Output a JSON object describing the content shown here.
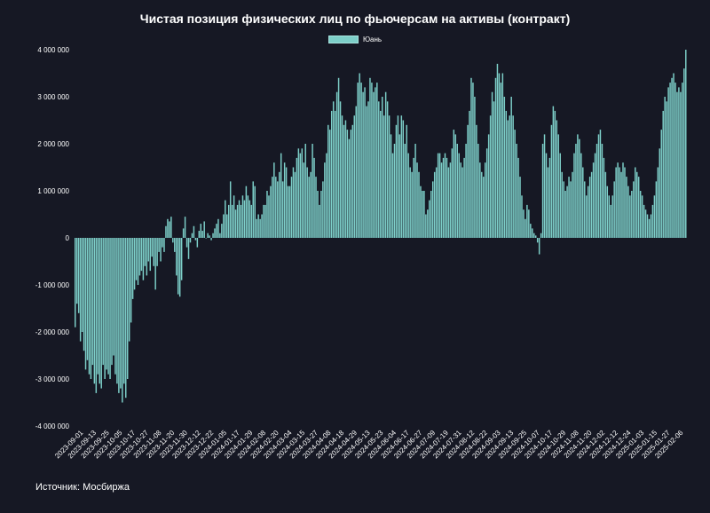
{
  "chart_data": {
    "type": "bar",
    "title": "Чистая позиция физических лиц по фьючерсам на активы  (контракт)",
    "series": [
      {
        "name": "Юань",
        "color": "#7dcfc9"
      }
    ],
    "ylim": [
      -4000000,
      4000000
    ],
    "yticks": [
      {
        "value": 4000000,
        "label": "4 000 000"
      },
      {
        "value": 3000000,
        "label": "3 000 000"
      },
      {
        "value": 2000000,
        "label": "2 000 000"
      },
      {
        "value": 1000000,
        "label": "1 000 000"
      },
      {
        "value": 0,
        "label": "0"
      },
      {
        "value": -1000000,
        "label": "-1 000 000"
      },
      {
        "value": -2000000,
        "label": "-2 000 000"
      },
      {
        "value": -3000000,
        "label": "-3 000 000"
      },
      {
        "value": -4000000,
        "label": "-4 000 000"
      }
    ],
    "xticks": [
      "2023-09-01",
      "2023-09-13",
      "2023-09-25",
      "2023-10-05",
      "2023-10-17",
      "2023-10-27",
      "2023-11-08",
      "2023-11-20",
      "2023-11-30",
      "2023-12-12",
      "2023-12-22",
      "2024-01-05",
      "2024-01-17",
      "2024-01-29",
      "2024-02-08",
      "2024-02-20",
      "2024-03-04",
      "2024-03-15",
      "2024-03-27",
      "2024-04-08",
      "2024-04-18",
      "2024-04-29",
      "2024-05-13",
      "2024-05-23",
      "2024-06-04",
      "2024-06-17",
      "2024-06-27",
      "2024-07-09",
      "2024-07-19",
      "2024-07-31",
      "2024-08-12",
      "2024-08-22",
      "2024-09-03",
      "2024-09-13",
      "2024-09-25",
      "2024-10-07",
      "2024-10-17",
      "2024-10-29",
      "2024-11-08",
      "2024-11-20",
      "2024-12-02",
      "2024-12-12",
      "2024-12-24",
      "2025-01-03",
      "2025-01-15",
      "2025-01-27",
      "2025-02-06"
    ],
    "values": [
      -1900000,
      -1400000,
      -1600000,
      -2200000,
      -2000000,
      -2400000,
      -2800000,
      -2600000,
      -2900000,
      -3000000,
      -2700000,
      -3100000,
      -3300000,
      -2900000,
      -3100000,
      -3200000,
      -2700000,
      -3000000,
      -2800000,
      -2900000,
      -3000000,
      -2700000,
      -2500000,
      -2900000,
      -3100000,
      -3300000,
      -3200000,
      -3500000,
      -3100000,
      -3400000,
      -3000000,
      -2200000,
      -1800000,
      -1300000,
      -1100000,
      -900000,
      -1000000,
      -800000,
      -700000,
      -900000,
      -600000,
      -800000,
      -500000,
      -700000,
      -400000,
      -600000,
      -1100000,
      -600000,
      -300000,
      -500000,
      -200000,
      -300000,
      250000,
      400000,
      350000,
      450000,
      -100000,
      -300000,
      -800000,
      -1200000,
      -1250000,
      -900000,
      200000,
      450000,
      -200000,
      -450000,
      -100000,
      100000,
      250000,
      -50000,
      -200000,
      150000,
      300000,
      150000,
      350000,
      0,
      100000,
      50000,
      -50000,
      100000,
      200000,
      300000,
      400000,
      100000,
      300000,
      500000,
      800000,
      500000,
      700000,
      1200000,
      700000,
      900000,
      600000,
      700000,
      800000,
      700000,
      900000,
      800000,
      1100000,
      900000,
      800000,
      700000,
      1200000,
      1100000,
      400000,
      500000,
      400000,
      500000,
      700000,
      700000,
      1000000,
      900000,
      1100000,
      1300000,
      1600000,
      1300000,
      1200000,
      1400000,
      1800000,
      1200000,
      1600000,
      1500000,
      1100000,
      1100000,
      1300000,
      1500000,
      1400000,
      1700000,
      1900000,
      1800000,
      1900000,
      1600000,
      2000000,
      1500000,
      1300000,
      1400000,
      2000000,
      1700000,
      1300000,
      1000000,
      700000,
      1000000,
      1200000,
      1600000,
      1800000,
      2400000,
      2300000,
      2700000,
      2900000,
      2700000,
      3100000,
      3400000,
      2900000,
      2600000,
      2400000,
      2500000,
      2300000,
      2100000,
      2300000,
      2400000,
      2600000,
      2800000,
      3300000,
      3500000,
      3300000,
      3100000,
      3200000,
      2800000,
      2900000,
      3400000,
      3300000,
      3100000,
      3200000,
      3300000,
      2900000,
      2700000,
      3000000,
      2600000,
      3100000,
      2900000,
      2600000,
      2200000,
      1800000,
      2000000,
      2400000,
      2600000,
      2200000,
      2600000,
      2500000,
      2000000,
      2400000,
      1800000,
      1500000,
      1400000,
      1700000,
      2000000,
      1600000,
      1400000,
      1100000,
      1000000,
      1000000,
      500000,
      600000,
      800000,
      1000000,
      1200000,
      1400000,
      1500000,
      1800000,
      1800000,
      1600000,
      1700000,
      1800000,
      1700000,
      1500000,
      1600000,
      1900000,
      2300000,
      2200000,
      2000000,
      1800000,
      1600000,
      1500000,
      1700000,
      2000000,
      2400000,
      2700000,
      3400000,
      3300000,
      3000000,
      2400000,
      2000000,
      1600000,
      1400000,
      1300000,
      1600000,
      1900000,
      2200000,
      2600000,
      3100000,
      2900000,
      3400000,
      3700000,
      3500000,
      3300000,
      3500000,
      3000000,
      2700000,
      2500000,
      2600000,
      3000000,
      2600000,
      2300000,
      2000000,
      1700000,
      1300000,
      900000,
      600000,
      400000,
      700000,
      600000,
      300000,
      200000,
      100000,
      50000,
      -100000,
      -350000,
      100000,
      2000000,
      2200000,
      1800000,
      1500000,
      1700000,
      2400000,
      2800000,
      2700000,
      2500000,
      2200000,
      1800000,
      1400000,
      1200000,
      1000000,
      1100000,
      1300000,
      1200000,
      1400000,
      1800000,
      2000000,
      2200000,
      2100000,
      1800000,
      1500000,
      1200000,
      900000,
      1100000,
      1300000,
      1400000,
      1600000,
      1800000,
      2000000,
      2200000,
      2300000,
      2000000,
      1700000,
      1400000,
      1100000,
      900000,
      700000,
      900000,
      1200000,
      1500000,
      1600000,
      1500000,
      1400000,
      1600000,
      1500000,
      1300000,
      1100000,
      900000,
      1000000,
      1200000,
      1500000,
      1400000,
      1300000,
      1000000,
      900000,
      700000,
      600000,
      500000,
      400000,
      500000,
      700000,
      900000,
      1200000,
      1500000,
      1900000,
      2300000,
      2700000,
      3000000,
      2900000,
      3200000,
      3300000,
      3400000,
      3500000,
      3300000,
      3100000,
      3200000,
      3100000,
      3300000,
      3600000,
      4000000
    ]
  },
  "source": "Источник: Мосбиржа"
}
